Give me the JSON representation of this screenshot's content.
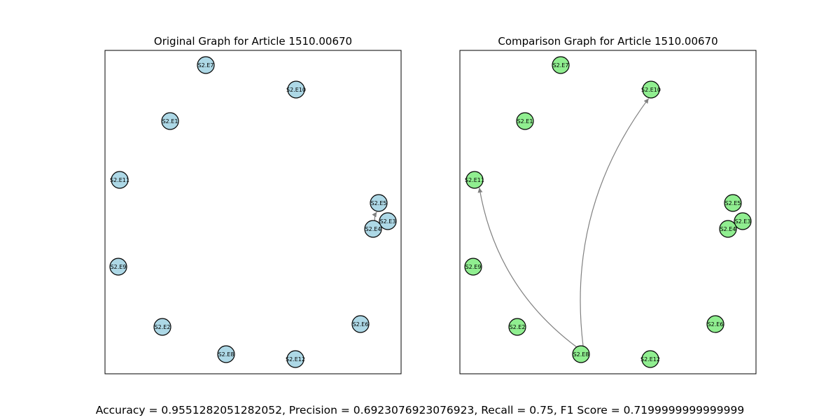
{
  "left_panel": {
    "title": "Original Graph for Article 1510.00670",
    "node_color": "#add8e6",
    "nodes": [
      "S2.E7",
      "S2.E10",
      "S2.E1",
      "S2.E11",
      "S2.E5",
      "S2.E3",
      "S2.E4",
      "S2.E9",
      "S2.E6",
      "S2.E2",
      "S2.E8",
      "S2.E12"
    ],
    "edges": [
      {
        "from": "S2.E4",
        "to": "S2.E5"
      }
    ]
  },
  "right_panel": {
    "title": "Comparison Graph for Article 1510.00670",
    "node_color": "#90ee90",
    "nodes": [
      "S2.E7",
      "S2.E10",
      "S2.E1",
      "S2.E11",
      "S2.E5",
      "S2.E3",
      "S2.E4",
      "S2.E9",
      "S2.E6",
      "S2.E2",
      "S2.E8",
      "S2.E12"
    ],
    "edges": [
      {
        "from": "S2.E8",
        "to": "S2.E11"
      },
      {
        "from": "S2.E8",
        "to": "S2.E10"
      }
    ]
  },
  "edge_color": "#808080",
  "metrics_text": "Accuracy = 0.9551282051282052, Precision = 0.6923076923076923, Recall = 0.75, F1 Score = 0.7199999999999999"
}
